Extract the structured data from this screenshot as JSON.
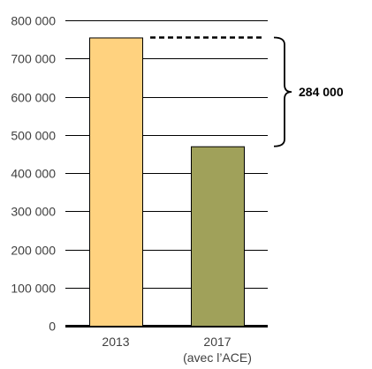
{
  "chart_data": {
    "type": "bar",
    "categories": [
      {
        "line1": "2013",
        "line2": ""
      },
      {
        "line1": "2017",
        "line2": "(avec l’ACE)"
      }
    ],
    "values": [
      755000,
      470000
    ],
    "colors": [
      "#FFD27F",
      "#A0A15A"
    ],
    "ylim": [
      0,
      800000
    ],
    "yticks": [
      0,
      100000,
      200000,
      300000,
      400000,
      500000,
      600000,
      700000,
      800000
    ],
    "ytick_labels": [
      "0",
      "100 000",
      "200 000",
      "300 000",
      "400 000",
      "500 000",
      "600 000",
      "700 000",
      "800 000"
    ],
    "grid": true,
    "annotation": {
      "label": "284 000",
      "from_value": 755000,
      "to_value": 470000
    }
  }
}
